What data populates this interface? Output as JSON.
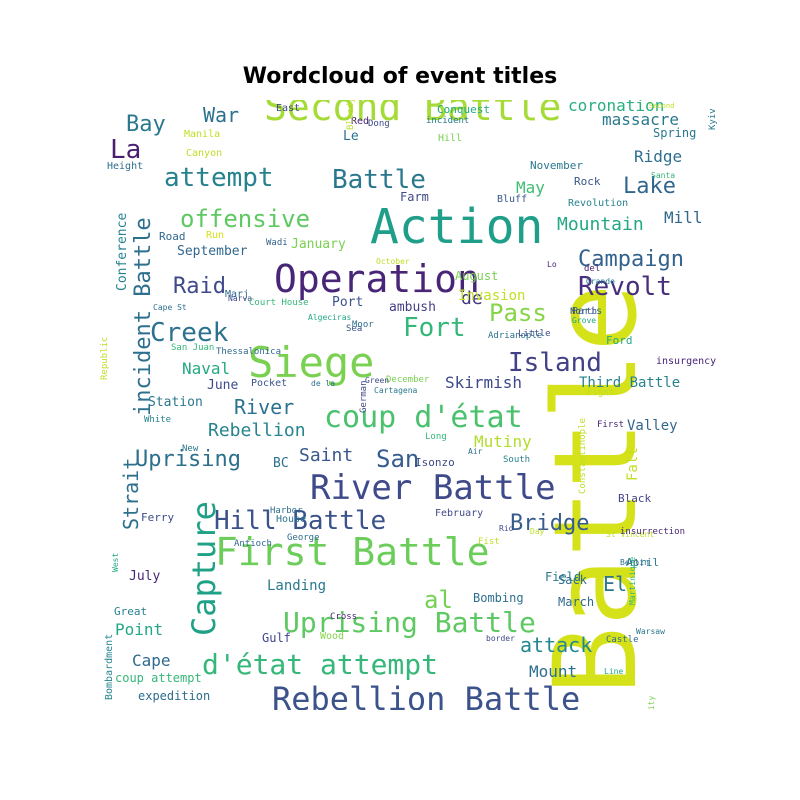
{
  "chart_data": {
    "type": "wordcloud",
    "title": "Wordcloud of event titles",
    "colormap": "viridis",
    "words": [
      {
        "text": "Battle",
        "color": "#d5e21a"
      },
      {
        "text": "Action",
        "color": "#1f9e89"
      },
      {
        "text": "Second Battle",
        "color": "#a5db36"
      },
      {
        "text": "Operation",
        "color": "#482576"
      },
      {
        "text": "Siege",
        "color": "#7ad151"
      },
      {
        "text": "First Battle",
        "color": "#6ccd5a"
      },
      {
        "text": "River Battle",
        "color": "#3e4a89"
      },
      {
        "text": "Rebellion Battle",
        "color": "#3b528b"
      },
      {
        "text": "coup d'état",
        "color": "#4ac16d"
      },
      {
        "text": "d'état attempt",
        "color": "#35b779"
      },
      {
        "text": "Uprising Battle",
        "color": "#5ec962"
      },
      {
        "text": "Capture",
        "color": "#1fa187"
      },
      {
        "text": "attempt",
        "color": "#26828e"
      },
      {
        "text": "Battle",
        "color": "#2a788e"
      },
      {
        "text": "Revolt",
        "color": "#472f7d"
      },
      {
        "text": "Island",
        "color": "#424086"
      },
      {
        "text": "Hill Battle",
        "color": "#3b528b"
      },
      {
        "text": "Campaign",
        "color": "#33638d"
      },
      {
        "text": "Bridge",
        "color": "#375b8d"
      },
      {
        "text": "incident Battle",
        "color": "#2e6f8e"
      },
      {
        "text": "offensive",
        "color": "#5ec962"
      },
      {
        "text": "Creek",
        "color": "#2c728e"
      },
      {
        "text": "Fort",
        "color": "#35b779"
      },
      {
        "text": "Pass",
        "color": "#86d549"
      },
      {
        "text": "Raid",
        "color": "#3e4a89"
      },
      {
        "text": "Uprising",
        "color": "#2d708e"
      },
      {
        "text": "San",
        "color": "#365c8d"
      },
      {
        "text": "La",
        "color": "#481f70"
      },
      {
        "text": "Bay",
        "color": "#2a788e"
      },
      {
        "text": "Lake",
        "color": "#31678e"
      },
      {
        "text": "Mountain",
        "color": "#22a884"
      },
      {
        "text": "Skirmish",
        "color": "#3e4989"
      },
      {
        "text": "Rebellion",
        "color": "#25848e"
      },
      {
        "text": "Mutiny",
        "color": "#b2dd2d"
      },
      {
        "text": "River",
        "color": "#2c728e"
      },
      {
        "text": "Saint",
        "color": "#38588c"
      },
      {
        "text": "El",
        "color": "#2a768e"
      },
      {
        "text": "al",
        "color": "#75d054"
      },
      {
        "text": "attack",
        "color": "#23888e"
      },
      {
        "text": "Strait",
        "color": "#2d708e"
      },
      {
        "text": "War",
        "color": "#2c728e"
      },
      {
        "text": "massacre",
        "color": "#2a788e"
      },
      {
        "text": "coronation",
        "color": "#29af7f"
      },
      {
        "text": "Ridge",
        "color": "#2e6e8e"
      },
      {
        "text": "May",
        "color": "#3fbc73"
      },
      {
        "text": "Mill",
        "color": "#31688e"
      },
      {
        "text": "de",
        "color": "#453882"
      },
      {
        "text": "Naval",
        "color": "#23a983"
      },
      {
        "text": "Third Battle",
        "color": "#26828e"
      },
      {
        "text": "Valley",
        "color": "#31678e"
      },
      {
        "text": "Invasion",
        "color": "#c2df23"
      },
      {
        "text": "Cape",
        "color": "#31688e"
      },
      {
        "text": "Mount",
        "color": "#2e6e8e"
      },
      {
        "text": "Point",
        "color": "#22a884"
      },
      {
        "text": "Landing",
        "color": "#2a788e"
      },
      {
        "text": "Bombing",
        "color": "#2d708e"
      },
      {
        "text": "September",
        "color": "#31678e"
      },
      {
        "text": "January",
        "color": "#7ad151"
      },
      {
        "text": "June",
        "color": "#3e4a89"
      },
      {
        "text": "Station",
        "color": "#2a788e"
      },
      {
        "text": "July",
        "color": "#482576"
      },
      {
        "text": "Sack",
        "color": "#2e6e8e"
      },
      {
        "text": "Field",
        "color": "#29798e"
      },
      {
        "text": "March",
        "color": "#31688e"
      },
      {
        "text": "Gulf",
        "color": "#3f4788"
      },
      {
        "text": "Spring",
        "color": "#2a788e"
      },
      {
        "text": "Ferry",
        "color": "#3e4a89"
      },
      {
        "text": "Great",
        "color": "#26828e"
      },
      {
        "text": "Fall",
        "color": "#c2df23"
      },
      {
        "text": "Port",
        "color": "#3b528b"
      },
      {
        "text": "ambush",
        "color": "#433e85"
      },
      {
        "text": "BC",
        "color": "#2d708e"
      },
      {
        "text": "Conference",
        "color": "#26828e"
      },
      {
        "text": "expedition",
        "color": "#2e6e8e"
      },
      {
        "text": "coup attempt",
        "color": "#35b779"
      },
      {
        "text": "Bombardment",
        "color": "#25848e"
      },
      {
        "text": "Isonzo",
        "color": "#3e4a89"
      },
      {
        "text": "April",
        "color": "#2a788e"
      },
      {
        "text": "Ford",
        "color": "#22a884"
      },
      {
        "text": "insurgency",
        "color": "#482576"
      },
      {
        "text": "Pocket",
        "color": "#3b528b"
      },
      {
        "text": "February",
        "color": "#3e4a89"
      },
      {
        "text": "Road",
        "color": "#31688e"
      },
      {
        "text": "November",
        "color": "#2a788e"
      },
      {
        "text": "Lo",
        "color": "#482576"
      },
      {
        "text": "Black",
        "color": "#414487"
      },
      {
        "text": "Revolution",
        "color": "#26828e"
      },
      {
        "text": "August",
        "color": "#7ad151"
      },
      {
        "text": "Paris",
        "color": "#2d708e"
      },
      {
        "text": "North",
        "color": "#3e4989"
      },
      {
        "text": "Rock",
        "color": "#39568c"
      },
      {
        "text": "Wood",
        "color": "#84d44b"
      },
      {
        "text": "Bluff",
        "color": "#38588c"
      },
      {
        "text": "House",
        "color": "#2a788e"
      },
      {
        "text": "Farm",
        "color": "#3e4a89"
      },
      {
        "text": "Le",
        "color": "#2c728e"
      },
      {
        "text": "Hill",
        "color": "#7ad151"
      },
      {
        "text": "Red",
        "color": "#482576"
      },
      {
        "text": "Conquest",
        "color": "#22a884"
      },
      {
        "text": "East",
        "color": "#404688"
      },
      {
        "text": "Manila",
        "color": "#bddf26"
      },
      {
        "text": "Canyon",
        "color": "#bddf26"
      },
      {
        "text": "Height",
        "color": "#2e6e8e"
      },
      {
        "text": "incident",
        "color": "#287c8e"
      },
      {
        "text": "Bloody",
        "color": "#bddf26"
      },
      {
        "text": "Dong",
        "color": "#3e4989"
      },
      {
        "text": "Kyiv",
        "color": "#2a788e"
      },
      {
        "text": "Second",
        "color": "#c2df23"
      },
      {
        "text": "Santa",
        "color": "#35b779"
      },
      {
        "text": "Run",
        "color": "#d8e219"
      },
      {
        "text": "Wadi",
        "color": "#33638d"
      },
      {
        "text": "October",
        "color": "#bddf26"
      },
      {
        "text": "del",
        "color": "#482576"
      },
      {
        "text": "Grande",
        "color": "#2a788e"
      },
      {
        "text": "Cape St",
        "color": "#2d708e"
      },
      {
        "text": "Narva",
        "color": "#3e4a89"
      },
      {
        "text": "Court House",
        "color": "#35b779"
      },
      {
        "text": "Marj",
        "color": "#31688e"
      },
      {
        "text": "Algeciras",
        "color": "#22a884"
      },
      {
        "text": "Sea",
        "color": "#3b528b"
      },
      {
        "text": "Moor",
        "color": "#2e6e8e"
      },
      {
        "text": "Adrianople",
        "color": "#2d708e"
      },
      {
        "text": "Little",
        "color": "#3e4a89"
      },
      {
        "text": "Grove",
        "color": "#22a884"
      },
      {
        "text": "San Juan",
        "color": "#35b779"
      },
      {
        "text": "Thessalonica",
        "color": "#31688e"
      },
      {
        "text": "Republic",
        "color": "#bddf26"
      },
      {
        "text": "de la",
        "color": "#2d708e"
      },
      {
        "text": "December",
        "color": "#7ad151"
      },
      {
        "text": "Cartagena",
        "color": "#2a788e"
      },
      {
        "text": "Green",
        "color": "#3e4a89"
      },
      {
        "text": "Fight",
        "color": "#bddf26"
      },
      {
        "text": "German",
        "color": "#3e4989"
      },
      {
        "text": "Long",
        "color": "#35b779"
      },
      {
        "text": "First",
        "color": "#482576"
      },
      {
        "text": "White",
        "color": "#26828e"
      },
      {
        "text": "New",
        "color": "#2a788e"
      },
      {
        "text": "Harbor",
        "color": "#2e6e8e"
      },
      {
        "text": "Air",
        "color": "#2d708e"
      },
      {
        "text": "South",
        "color": "#26828e"
      },
      {
        "text": "Constantinople",
        "color": "#bddf26"
      },
      {
        "text": "George",
        "color": "#2e6e8e"
      },
      {
        "text": "Rio",
        "color": "#3e4a89"
      },
      {
        "text": "Fist",
        "color": "#bddf26"
      },
      {
        "text": "Day",
        "color": "#bddf26"
      },
      {
        "text": "West",
        "color": "#22a884"
      },
      {
        "text": "Antioch",
        "color": "#31688e"
      },
      {
        "text": "St Vincent",
        "color": "#bddf26"
      },
      {
        "text": "border",
        "color": "#3e4a89"
      },
      {
        "text": "Cross",
        "color": "#482576"
      },
      {
        "text": "City",
        "color": "#7ad151"
      },
      {
        "text": "Castle",
        "color": "#2e6e8e"
      },
      {
        "text": "Line",
        "color": "#22a884"
      },
      {
        "text": "Warsaw",
        "color": "#2a788e"
      },
      {
        "text": "Martinique",
        "color": "#35b779"
      },
      {
        "text": "insurrection",
        "color": "#482576"
      },
      {
        "text": "Berlin",
        "color": "#2d708e"
      },
      {
        "text": "Heath",
        "color": "#7ad151"
      },
      {
        "text": "Barcelona",
        "color": "#2a788e"
      },
      {
        "text": "Church",
        "color": "#86d549"
      },
      {
        "text": "Grand",
        "color": "#3e4a89"
      },
      {
        "text": "Big",
        "color": "#2e6e8e"
      },
      {
        "text": "St",
        "color": "#22a884"
      },
      {
        "text": "Monte",
        "color": "#7ad151"
      },
      {
        "text": "military",
        "color": "#2d708e"
      }
    ]
  }
}
